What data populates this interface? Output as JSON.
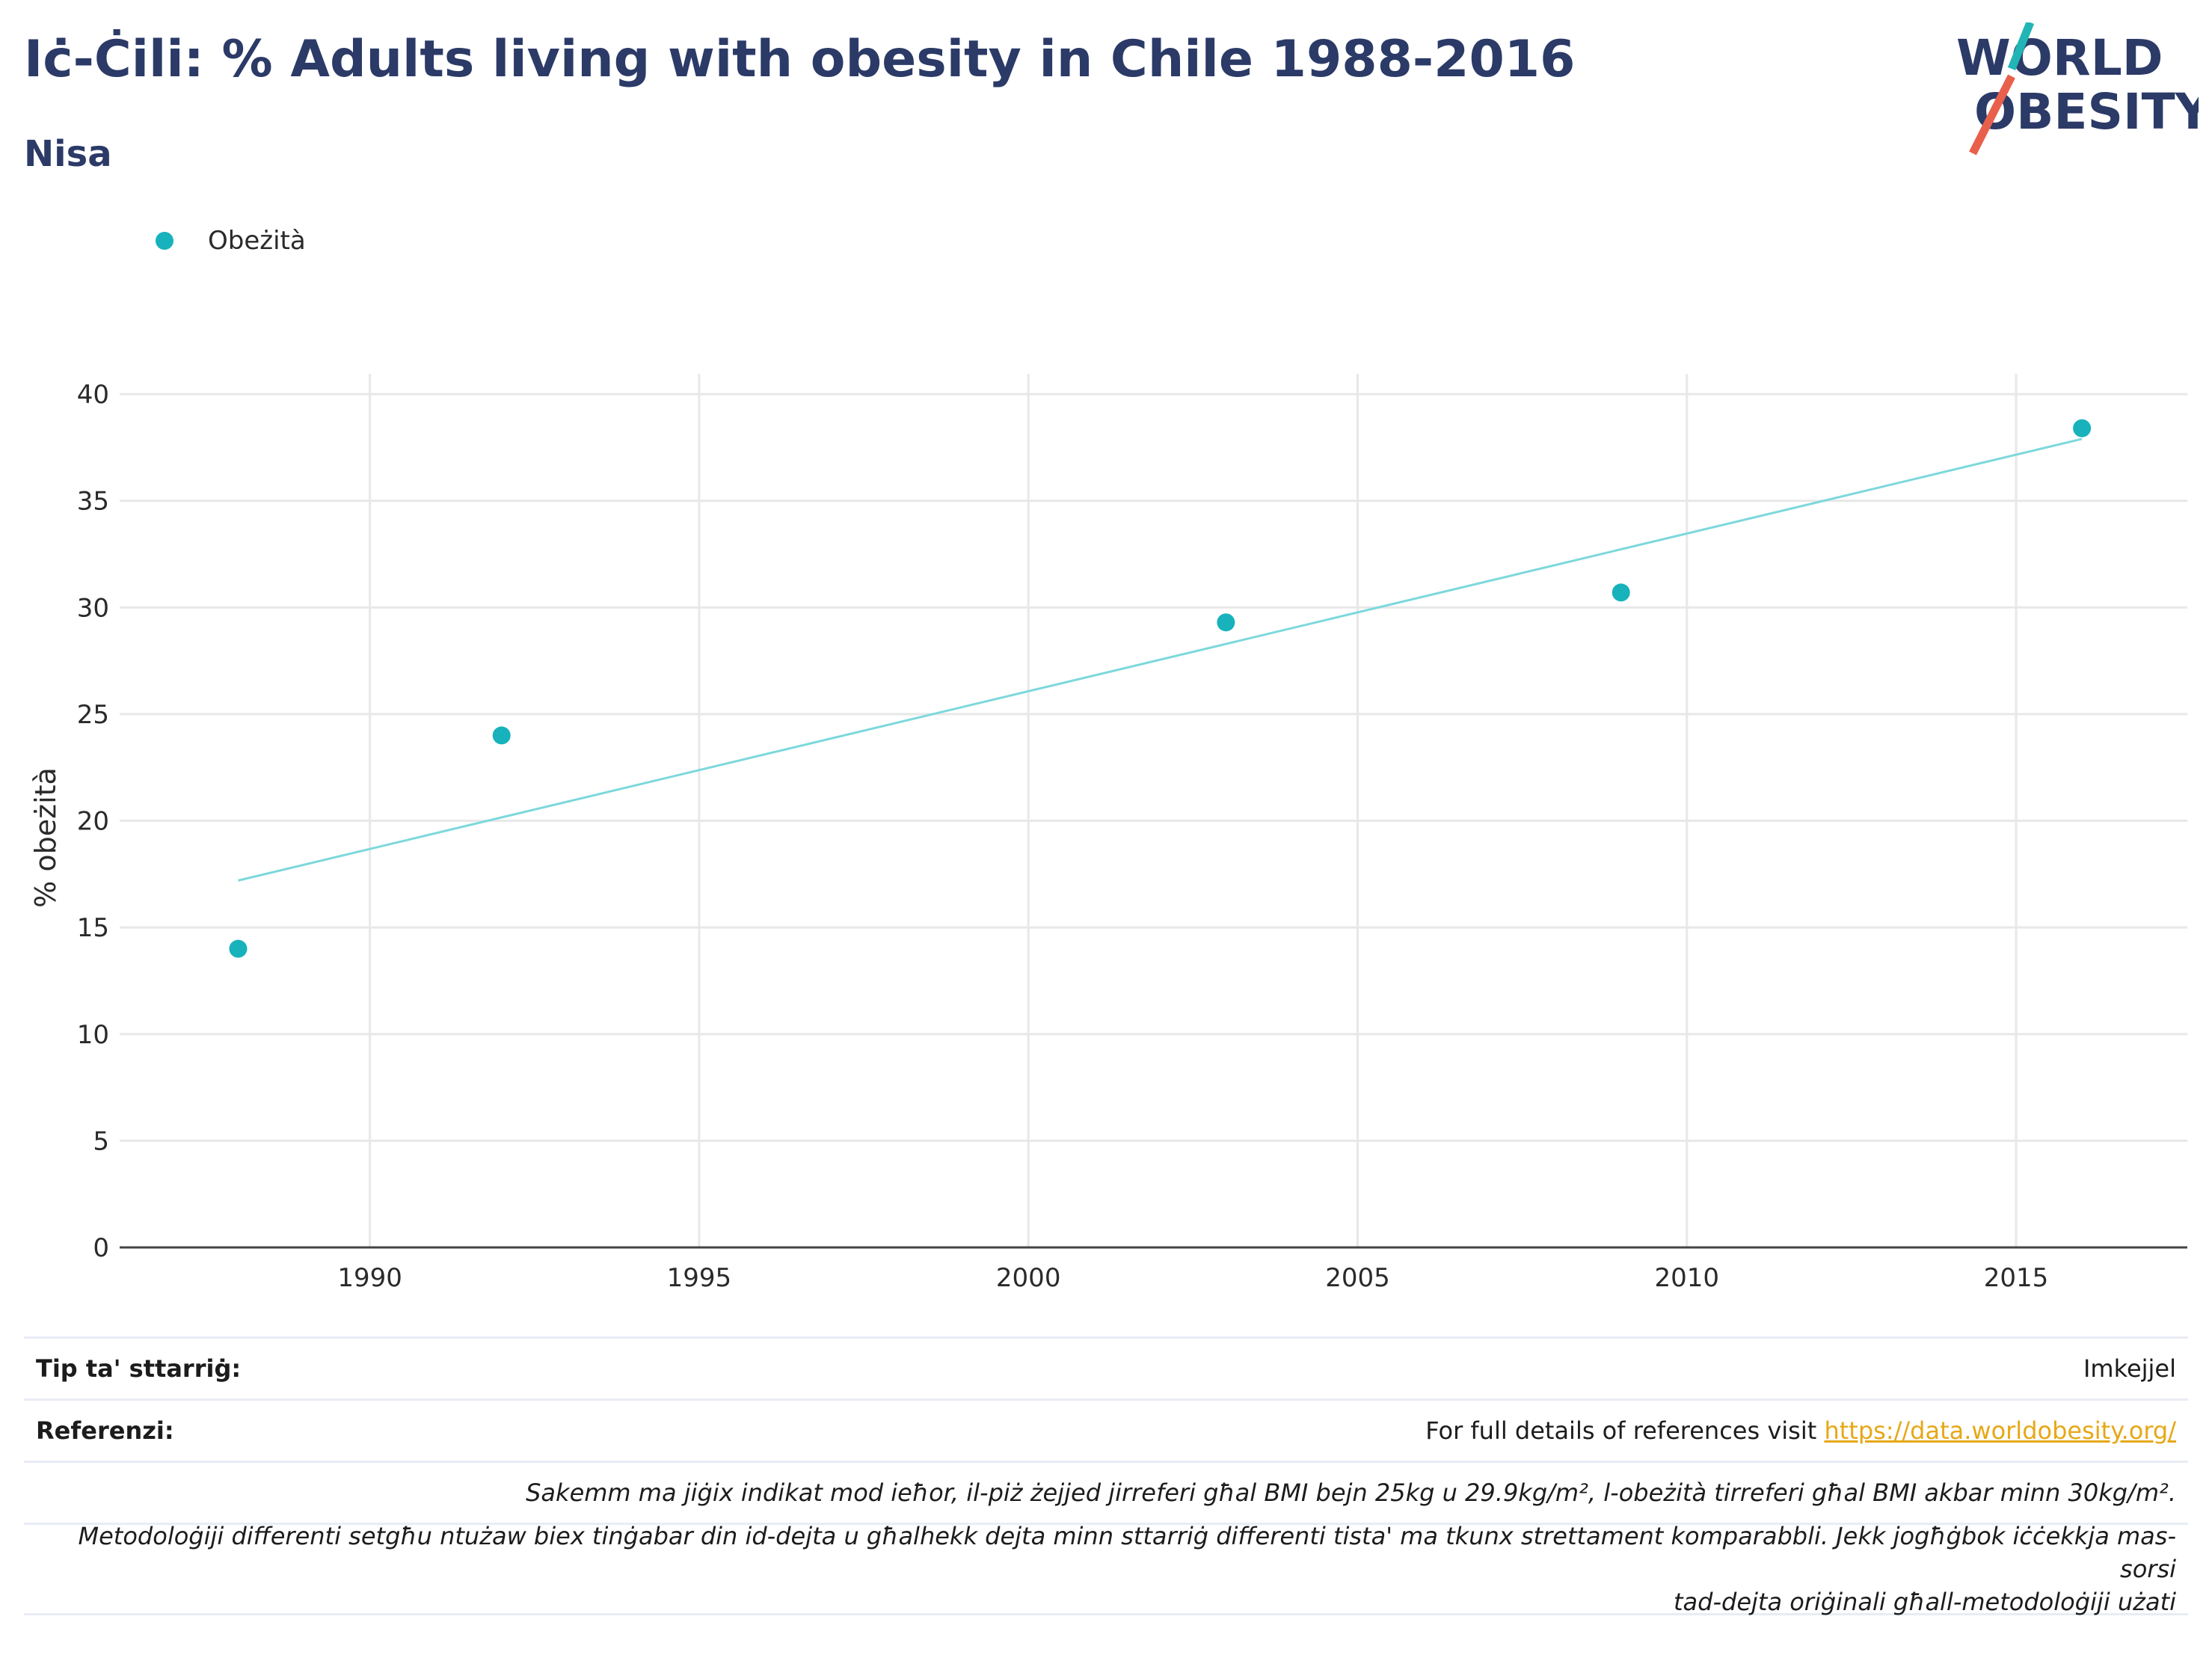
{
  "header": {
    "title": "Iċ-Ċili: % Adults living with obesity in Chile 1988-2016",
    "subtitle": "Nisa"
  },
  "logo": {
    "line1": "WORLD",
    "line2": "OBESITY",
    "accent_teal": "#22b5b5",
    "accent_red": "#e8604c"
  },
  "chart_data": {
    "type": "scatter",
    "ylabel": "% obeżità",
    "xlabel": "",
    "xlim": [
      1986.2,
      2017.6
    ],
    "ylim": [
      0,
      40
    ],
    "x_ticks": [
      1990,
      1995,
      2000,
      2005,
      2010,
      2015
    ],
    "y_ticks": [
      0,
      5,
      10,
      15,
      20,
      25,
      30,
      35,
      40
    ],
    "grid": true,
    "legend_position": "top-left",
    "series": [
      {
        "name": "Obeżità",
        "color": "#17b2bb",
        "points": [
          {
            "x": 1988,
            "y": 14.0
          },
          {
            "x": 1992,
            "y": 24.0
          },
          {
            "x": 2003,
            "y": 29.3
          },
          {
            "x": 2009,
            "y": 30.7
          },
          {
            "x": 2016,
            "y": 38.4
          }
        ]
      }
    ],
    "trendline": {
      "color": "#7dd8dc",
      "x": [
        1988,
        2016
      ],
      "y": [
        17.2,
        37.9
      ]
    }
  },
  "footer": {
    "source_type_label": "Tip ta' sttarriġ:",
    "source_type_value": "Imkejjel",
    "references_label": "Referenzi:",
    "references_text": "For full details of references visit ",
    "references_link": "https://data.worldobesity.org/",
    "note1": "Sakemm ma jiġix indikat mod ieħor, il-piż żejjed jirreferi għal BMI bejn 25kg u 29.9kg/m², l-obeżità tirreferi għal BMI akbar minn 30kg/m².",
    "note2_line1": "Metodoloġiji differenti setgħu ntużaw biex tinġabar din id-dejta u għalhekk dejta minn sttarriġ differenti tista' ma tkunx strettament komparabbli. Jekk jogħġbok iċċekkja mas-sorsi",
    "note2_line2": "tad-dejta oriġinali għall-metodoloġiji użati"
  }
}
